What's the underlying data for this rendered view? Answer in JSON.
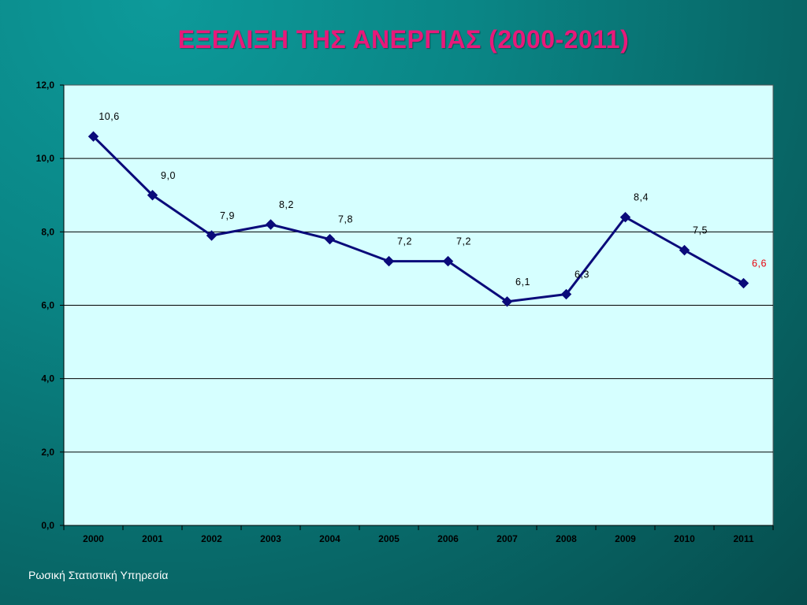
{
  "footer": {
    "source": "Ρωσική Στατιστική Υπηρεσία"
  },
  "colors": {
    "line": "#0a0a7a",
    "plot_background": "#d6ffff",
    "highlight_label": "#e8000b",
    "title": "#e8197a"
  },
  "chart_data": {
    "type": "line",
    "title": "ΕΞΕΛΙΞΗ ΤΗΣ ΑΝΕΡΓΙΑΣ (2000-2011)",
    "xlabel": "",
    "ylabel": "",
    "categories": [
      "2000",
      "2001",
      "2002",
      "2003",
      "2004",
      "2005",
      "2006",
      "2007",
      "2008",
      "2009",
      "2010",
      "2011"
    ],
    "series": [
      {
        "values": [
          10.6,
          9.0,
          7.9,
          8.2,
          7.8,
          7.2,
          7.2,
          6.1,
          6.3,
          8.4,
          7.5,
          6.6
        ],
        "data_labels": [
          "10,6",
          "9,0",
          "7,9",
          "8,2",
          "7,8",
          "7,2",
          "7,2",
          "6,1",
          "6,3",
          "8,4",
          "7,5",
          "6,6"
        ]
      }
    ],
    "highlight_label_index": 11,
    "ylim": [
      0,
      12
    ],
    "yticks": [
      0,
      2,
      4,
      6,
      8,
      10,
      12
    ],
    "ytick_labels": [
      "0,0",
      "2,0",
      "4,0",
      "6,0",
      "8,0",
      "10,0",
      "12,0"
    ],
    "grid": "horizontal",
    "marker": "diamond",
    "legend": "none"
  }
}
